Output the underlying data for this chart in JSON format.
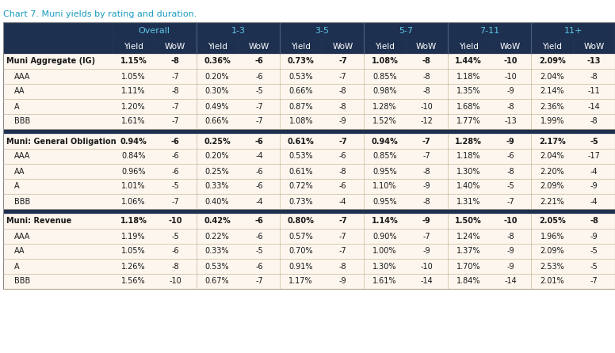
{
  "title": "Chart 7. Muni yields by rating and duration.",
  "title_color": "#1a9bc0",
  "header_bg": "#1e3050",
  "header_text_color": "#5bc8e8",
  "row_bg_light": "#fdf6ee",
  "row_bg_separator": "#1e3050",
  "col_groups": [
    "Overall",
    "1-3",
    "3-5",
    "5-7",
    "7-11",
    "11+"
  ],
  "col_subheaders": [
    "Yield",
    "WoW"
  ],
  "sections": [
    {
      "name": "Muni Aggregate (IG)",
      "data": [
        [
          "1.15%",
          "-8",
          "0.36%",
          "-6",
          "0.73%",
          "-7",
          "1.08%",
          "-8",
          "1.44%",
          "-10",
          "2.09%",
          "-13"
        ],
        [
          "1.05%",
          "-7",
          "0.20%",
          "-6",
          "0.53%",
          "-7",
          "0.85%",
          "-8",
          "1.18%",
          "-10",
          "2.04%",
          "-8"
        ],
        [
          "1.11%",
          "-8",
          "0.30%",
          "-5",
          "0.66%",
          "-8",
          "0.98%",
          "-8",
          "1.35%",
          "-9",
          "2.14%",
          "-11"
        ],
        [
          "1.20%",
          "-7",
          "0.49%",
          "-7",
          "0.87%",
          "-8",
          "1.28%",
          "-10",
          "1.68%",
          "-8",
          "2.36%",
          "-14"
        ],
        [
          "1.61%",
          "-7",
          "0.66%",
          "-7",
          "1.08%",
          "-9",
          "1.52%",
          "-12",
          "1.77%",
          "-13",
          "1.99%",
          "-8"
        ]
      ],
      "sub_labels": [
        "AAA",
        "AA",
        "A",
        "BBB"
      ]
    },
    {
      "name": "Muni: General Obligation",
      "data": [
        [
          "0.94%",
          "-6",
          "0.25%",
          "-6",
          "0.61%",
          "-7",
          "0.94%",
          "-7",
          "1.28%",
          "-9",
          "2.17%",
          "-5"
        ],
        [
          "0.84%",
          "-6",
          "0.20%",
          "-4",
          "0.53%",
          "-6",
          "0.85%",
          "-7",
          "1.18%",
          "-6",
          "2.04%",
          "-17"
        ],
        [
          "0.96%",
          "-6",
          "0.25%",
          "-6",
          "0.61%",
          "-8",
          "0.95%",
          "-8",
          "1.30%",
          "-8",
          "2.20%",
          "-4"
        ],
        [
          "1.01%",
          "-5",
          "0.33%",
          "-6",
          "0.72%",
          "-6",
          "1.10%",
          "-9",
          "1.40%",
          "-5",
          "2.09%",
          "-9"
        ],
        [
          "1.06%",
          "-7",
          "0.40%",
          "-4",
          "0.73%",
          "-4",
          "0.95%",
          "-8",
          "1.31%",
          "-7",
          "2.21%",
          "-4"
        ]
      ],
      "sub_labels": [
        "AAA",
        "AA",
        "A",
        "BBB"
      ]
    },
    {
      "name": "Muni: Revenue",
      "data": [
        [
          "1.18%",
          "-10",
          "0.42%",
          "-6",
          "0.80%",
          "-7",
          "1.14%",
          "-9",
          "1.50%",
          "-10",
          "2.05%",
          "-8"
        ],
        [
          "1.19%",
          "-5",
          "0.22%",
          "-6",
          "0.57%",
          "-7",
          "0.90%",
          "-7",
          "1.24%",
          "-8",
          "1.96%",
          "-9"
        ],
        [
          "1.05%",
          "-6",
          "0.33%",
          "-5",
          "0.70%",
          "-7",
          "1.00%",
          "-9",
          "1.37%",
          "-9",
          "2.09%",
          "-5"
        ],
        [
          "1.26%",
          "-8",
          "0.53%",
          "-6",
          "0.91%",
          "-8",
          "1.30%",
          "-10",
          "1.70%",
          "-9",
          "2.53%",
          "-5"
        ],
        [
          "1.56%",
          "-10",
          "0.67%",
          "-7",
          "1.17%",
          "-9",
          "1.61%",
          "-14",
          "1.84%",
          "-14",
          "2.01%",
          "-7"
        ]
      ],
      "sub_labels": [
        "AAA",
        "AA",
        "A",
        "BBB"
      ]
    }
  ]
}
